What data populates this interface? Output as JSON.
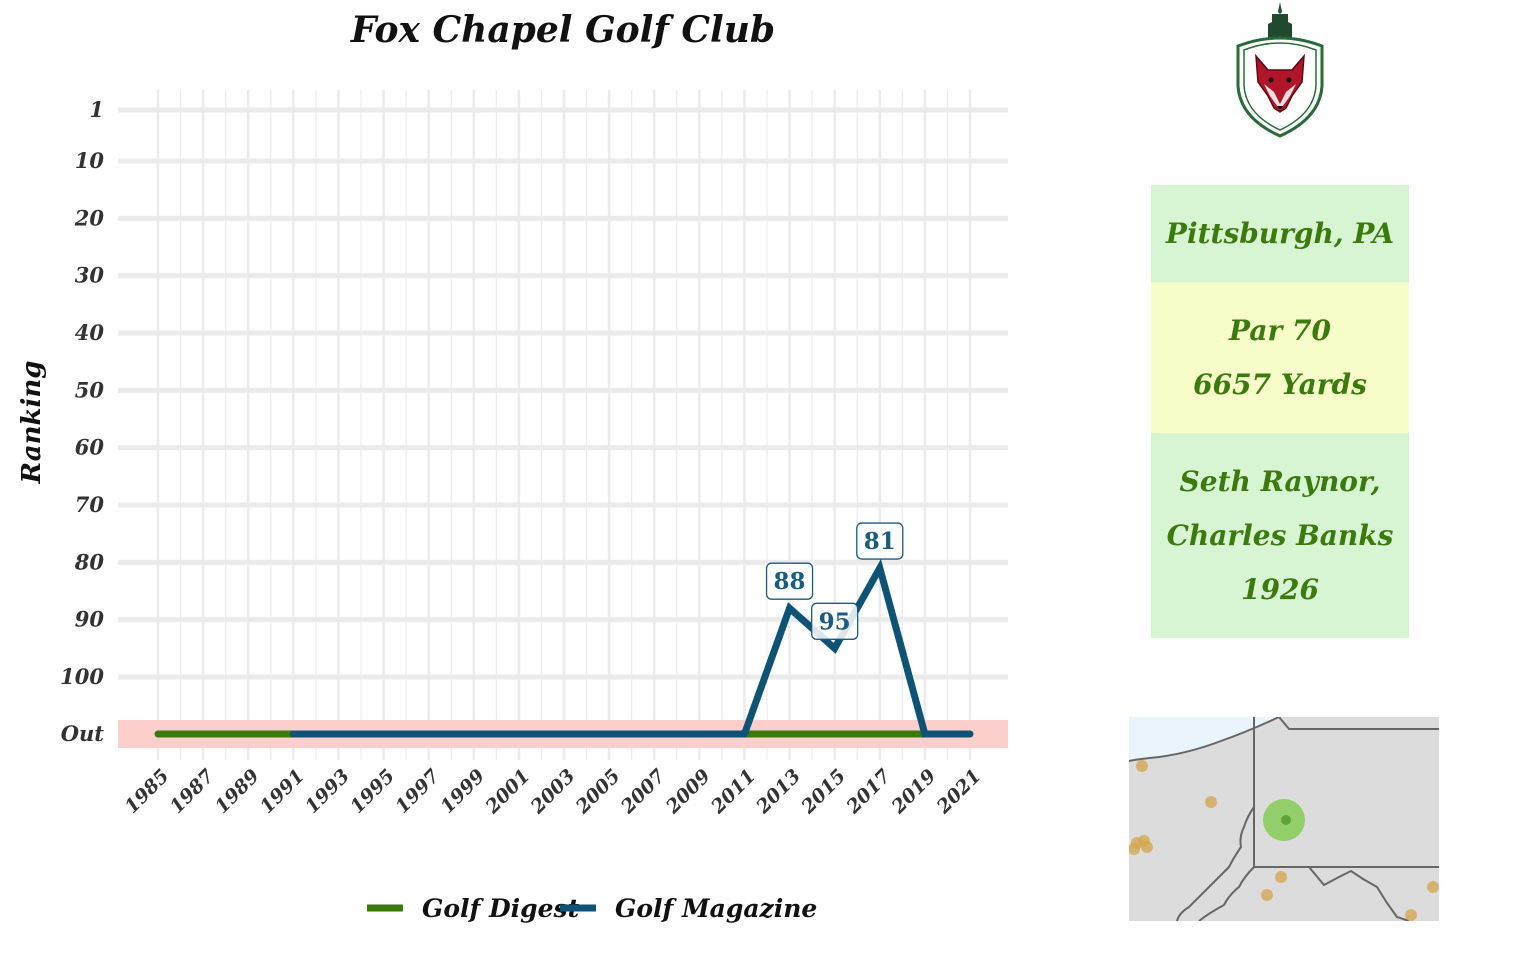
{
  "chart_data": {
    "type": "line",
    "title": "Fox Chapel Golf Club",
    "xlabel": "",
    "ylabel": "Ranking",
    "x_ticks": [
      "1985",
      "1987",
      "1989",
      "1991",
      "1993",
      "1995",
      "1997",
      "1999",
      "2001",
      "2003",
      "2005",
      "2007",
      "2009",
      "2011",
      "2013",
      "2015",
      "2017",
      "2019",
      "2021"
    ],
    "y_ticks": [
      "1",
      "10",
      "20",
      "30",
      "40",
      "50",
      "60",
      "70",
      "80",
      "90",
      "100",
      "Out"
    ],
    "y_scale": "reversed",
    "out_value": 110,
    "xlim": [
      1984,
      2022
    ],
    "ylim": [
      1,
      110
    ],
    "grid": true,
    "legend_position": "bottom",
    "series": [
      {
        "name": "Golf Digest",
        "color": "#3a7a0a",
        "points": [
          [
            1985,
            110
          ],
          [
            2019,
            110
          ]
        ]
      },
      {
        "name": "Golf Magazine",
        "color": "#0e5275",
        "points": [
          [
            1991,
            110
          ],
          [
            2011,
            110
          ],
          [
            2013,
            88
          ],
          [
            2015,
            95
          ],
          [
            2017,
            81
          ],
          [
            2019,
            110
          ],
          [
            2021,
            110
          ]
        ]
      }
    ],
    "point_labels": [
      {
        "x": 2013,
        "y": 88,
        "text": "88"
      },
      {
        "x": 2015,
        "y": 95,
        "text": "95"
      },
      {
        "x": 2017,
        "y": 81,
        "text": "81"
      }
    ],
    "out_band_color": "#fccfcc"
  },
  "info": {
    "location": "Pittsburgh, PA",
    "par": "Par 70",
    "yards": "6657 Yards",
    "architect_1": "Seth Raynor,",
    "architect_2": "Charles Banks",
    "year": "1926"
  },
  "logo": {
    "icon": "fox-crest-icon",
    "colors": {
      "shield": "#2a6a3a",
      "fox": "#b0152a"
    }
  },
  "map": {
    "icon": "region-map",
    "highlight_color": "#7ac943",
    "other_courses_color": "#d4a44a"
  }
}
